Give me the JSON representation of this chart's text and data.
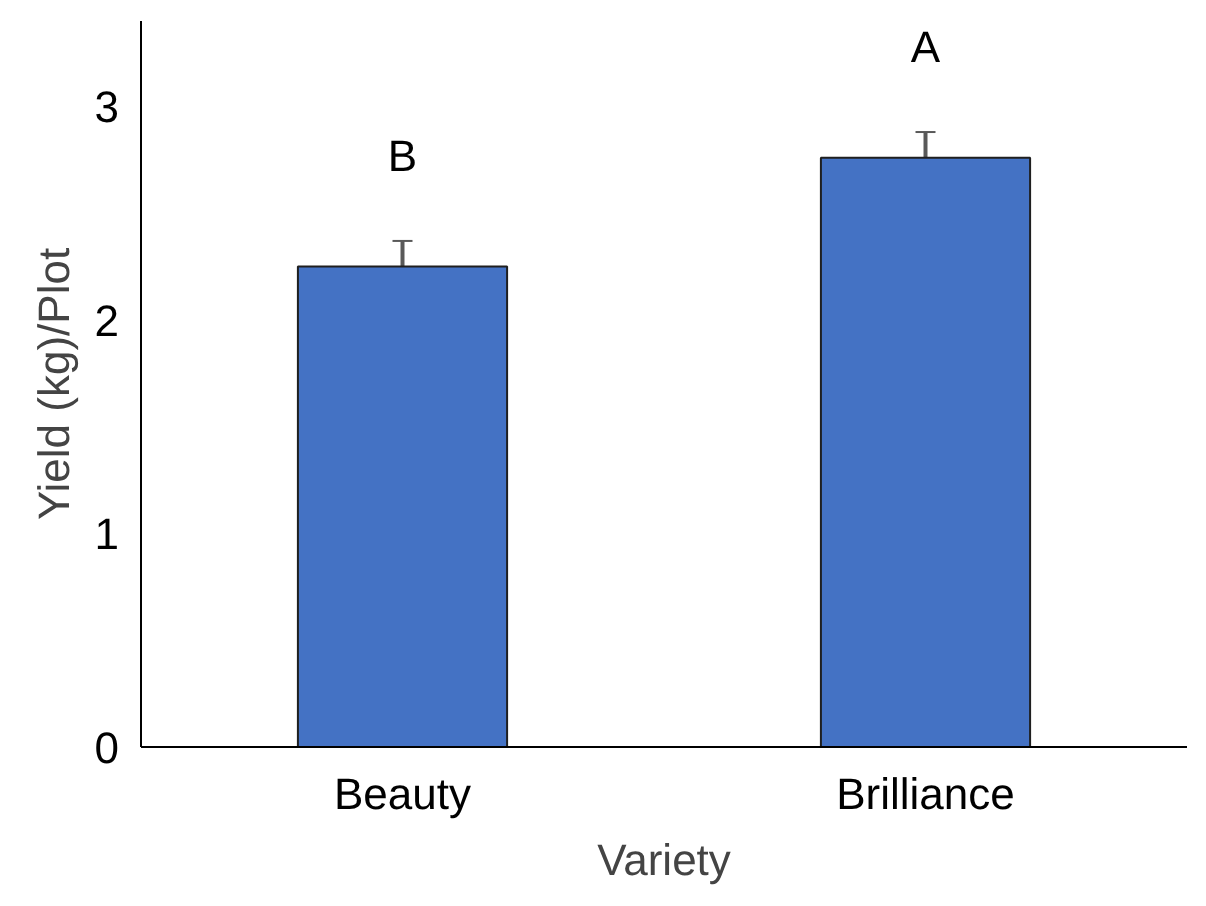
{
  "chart_data": {
    "type": "bar",
    "xlabel": "Variety",
    "ylabel": "Yield (kg)/Plot",
    "categories": [
      "Beauty",
      "Brilliance"
    ],
    "values": [
      2.25,
      2.76
    ],
    "errors": [
      0.12,
      0.12
    ],
    "color": "#4472c4",
    "ylim": [
      0,
      3.4
    ],
    "yticks": [
      0,
      1,
      2,
      3
    ],
    "grid": false,
    "annotations": [
      "B",
      "A"
    ]
  }
}
